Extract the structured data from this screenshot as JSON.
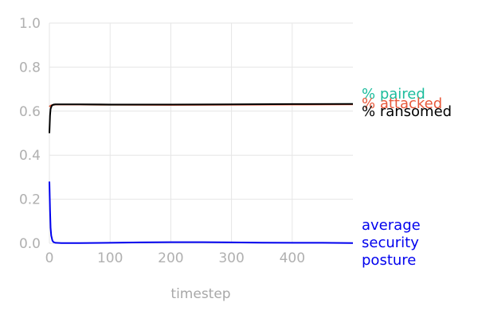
{
  "chart_data": {
    "type": "line",
    "title": "",
    "xlabel": "timestep",
    "ylabel": "",
    "xlim": [
      0,
      500
    ],
    "ylim": [
      0,
      1.0
    ],
    "grid": true,
    "legend": "inline-right",
    "x_ticks": [
      "0",
      "100",
      "200",
      "300",
      "400"
    ],
    "y_ticks": [
      "0.0",
      "0.2",
      "0.4",
      "0.6",
      "0.8",
      "1.0"
    ],
    "series": [
      {
        "name": "% paired",
        "color": "#1abc9c",
        "x": [
          0,
          2,
          5,
          10,
          20,
          50,
          100,
          200,
          300,
          400,
          500
        ],
        "y": [
          0.62,
          0.625,
          0.628,
          0.63,
          0.63,
          0.63,
          0.629,
          0.629,
          0.63,
          0.631,
          0.632
        ]
      },
      {
        "name": "% attacked",
        "color": "#e8583a",
        "x": [
          0,
          2,
          5,
          10,
          20,
          50,
          100,
          200,
          300,
          400,
          500
        ],
        "y": [
          0.62,
          0.625,
          0.628,
          0.63,
          0.63,
          0.63,
          0.629,
          0.628,
          0.629,
          0.63,
          0.631
        ]
      },
      {
        "name": "% ransomed",
        "color": "#000000",
        "x": [
          0,
          1,
          2,
          4,
          7,
          10,
          20,
          50,
          100,
          200,
          300,
          400,
          500
        ],
        "y": [
          0.5,
          0.58,
          0.61,
          0.625,
          0.63,
          0.631,
          0.631,
          0.631,
          0.63,
          0.63,
          0.631,
          0.632,
          0.633
        ]
      },
      {
        "name": "average\nsecurity\nposture",
        "color": "#0000ee",
        "x": [
          0,
          1,
          2,
          3,
          5,
          7,
          10,
          20,
          50,
          100,
          150,
          200,
          250,
          300,
          350,
          400,
          450,
          500
        ],
        "y": [
          0.28,
          0.15,
          0.07,
          0.035,
          0.012,
          0.005,
          0.002,
          0.001,
          0.001,
          0.002,
          0.004,
          0.005,
          0.005,
          0.004,
          0.003,
          0.002,
          0.002,
          0.001
        ]
      }
    ]
  }
}
